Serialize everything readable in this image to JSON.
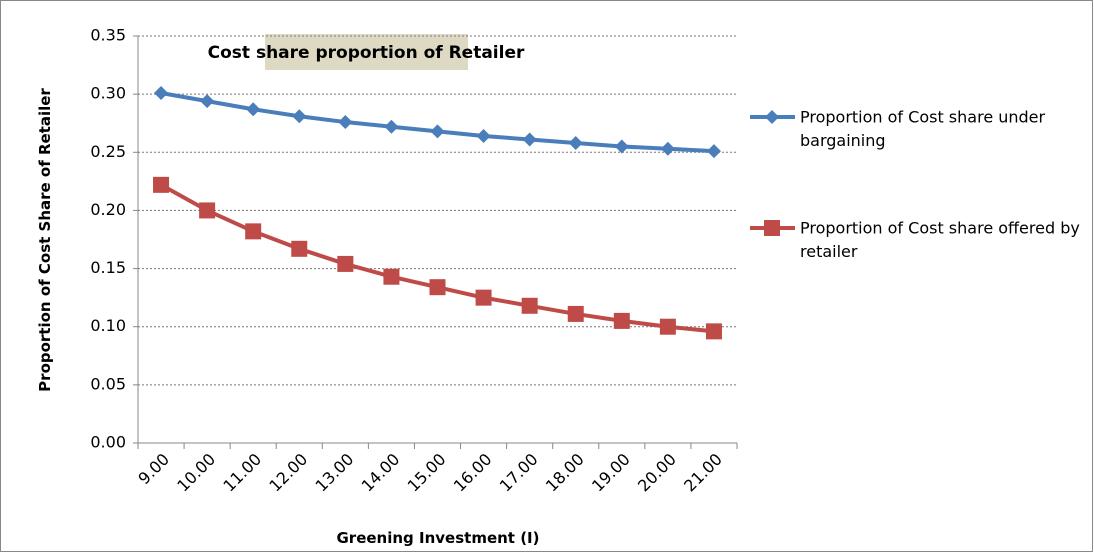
{
  "chart_data": {
    "type": "line",
    "title": "Cost share proportion of Retailer",
    "x_label": "Greening Investment (I)",
    "y_label": "Proportion of Cost Share of Retailer",
    "categories": [
      "9.00",
      "10.00",
      "11.00",
      "12.00",
      "13.00",
      "14.00",
      "15.00",
      "16.00",
      "17.00",
      "18.00",
      "19.00",
      "20.00",
      "21.00"
    ],
    "series": [
      {
        "name": "Proportion of Cost share under bargaining",
        "color": "#4a7ebb",
        "marker": "diamond",
        "values": [
          0.301,
          0.294,
          0.287,
          0.281,
          0.276,
          0.272,
          0.268,
          0.264,
          0.261,
          0.258,
          0.255,
          0.253,
          0.251
        ]
      },
      {
        "name": "Proportion of Cost share offered by retailer",
        "color": "#be4b48",
        "marker": "square",
        "values": [
          0.222,
          0.2,
          0.182,
          0.167,
          0.154,
          0.143,
          0.134,
          0.125,
          0.118,
          0.111,
          0.105,
          0.1,
          0.096
        ]
      }
    ],
    "ylim": [
      0,
      0.35
    ],
    "yticks": [
      {
        "value": 0,
        "label": "0.00"
      },
      {
        "value": 0.05,
        "label": "0.05"
      },
      {
        "value": 0.1,
        "label": "0.10"
      },
      {
        "value": 0.15,
        "label": "0.15"
      },
      {
        "value": 0.2,
        "label": "0.20"
      },
      {
        "value": 0.25,
        "label": "0.25"
      },
      {
        "value": 0.3,
        "label": "0.30"
      },
      {
        "value": 0.35,
        "label": "0.35"
      }
    ],
    "grid": true,
    "legend": "right"
  }
}
